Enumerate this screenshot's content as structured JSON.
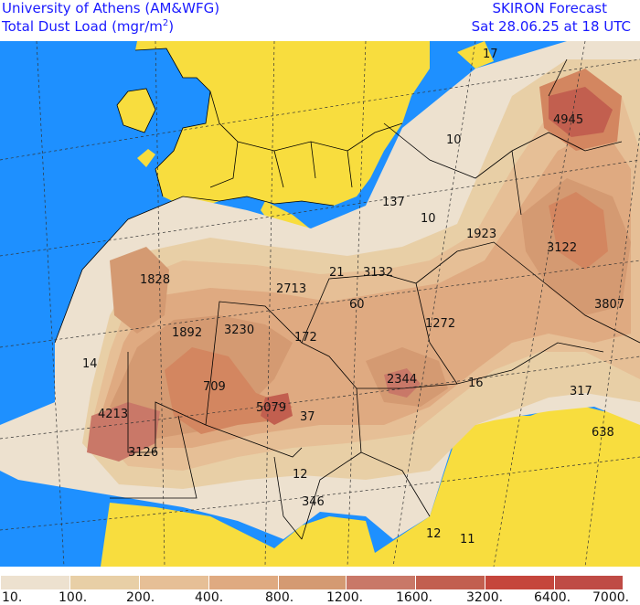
{
  "header": {
    "institution": "University of Athens (AM&WFG)",
    "product_prefix": "Total Dust Load (mgr/m",
    "product_power": "2",
    "product_suffix": ")",
    "forecast": "SKIRON Forecast",
    "valid_time": "Sat 28.06.25 at 18 UTC"
  },
  "colors": {
    "sea": "#1e90ff",
    "land_clean": "#f8dd3e",
    "text": "#1a1aff",
    "dust": [
      "#ede1cf",
      "#e8cfa6",
      "#e6bf96",
      "#dfaa81",
      "#d49a72",
      "#d38660",
      "#c97868",
      "#c25f4f",
      "#c5463c",
      "#bf4b45"
    ]
  },
  "map": {
    "values": [
      "17",
      "4945",
      "10",
      "137",
      "10",
      "1923",
      "3122",
      "3807",
      "1828",
      "2713",
      "21",
      "3132",
      "60",
      "1892",
      "3230",
      "172",
      "1272",
      "14",
      "709",
      "2344",
      "16",
      "317",
      "4213",
      "5079",
      "37",
      "638",
      "3126",
      "12",
      "346",
      "12",
      "11"
    ]
  },
  "legend": {
    "labels": [
      "10.",
      "100.",
      "200.",
      "400.",
      "800.",
      "1200.",
      "1600.",
      "3200.",
      "6400.",
      "7000."
    ]
  }
}
